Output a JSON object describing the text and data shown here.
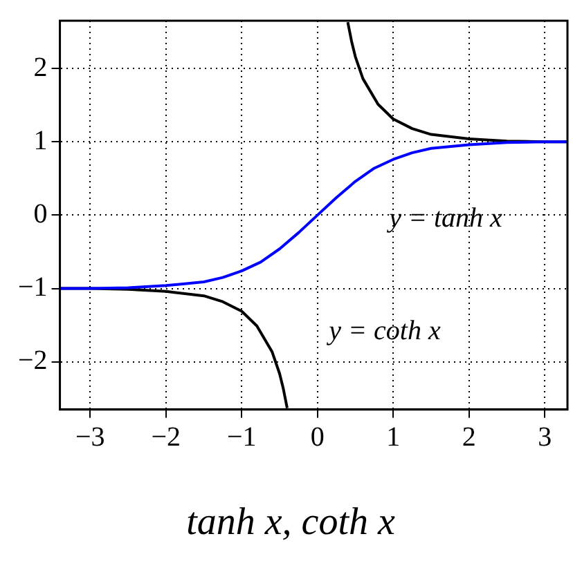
{
  "chart_data": {
    "type": "line",
    "title": "tanh x, coth x",
    "xlim": [
      -3.4,
      3.3
    ],
    "ylim": [
      -2.65,
      2.65
    ],
    "xticks": [
      {
        "value": -3,
        "label": "−3"
      },
      {
        "value": -2,
        "label": "−2"
      },
      {
        "value": -1,
        "label": "−1"
      },
      0,
      1,
      2,
      3
    ],
    "yticks": [
      {
        "value": -2,
        "label": "−2"
      },
      {
        "value": -1,
        "label": "−1"
      },
      0,
      1,
      2
    ],
    "grid": true,
    "legend": false,
    "marker": "none",
    "line_style": "solid",
    "series": [
      {
        "color": "#0000ff",
        "x": [
          -3.4,
          -3,
          -2.5,
          -2,
          -1.5,
          -1.25,
          -1,
          -0.75,
          -0.5,
          -0.25,
          0,
          0.25,
          0.5,
          0.75,
          1,
          1.25,
          1.5,
          2,
          2.5,
          3,
          3.3
        ],
        "values": [
          -1.0,
          -1.0,
          -0.99,
          -0.96,
          -0.91,
          -0.85,
          -0.76,
          -0.64,
          -0.46,
          -0.24,
          0,
          0.24,
          0.46,
          0.64,
          0.76,
          0.85,
          0.91,
          0.96,
          0.99,
          1.0,
          1.0
        ]
      },
      {
        "color": "#000000",
        "x": [
          -3.4,
          -3,
          -2.5,
          -2,
          -1.5,
          -1.25,
          -1,
          -0.8,
          -0.6,
          -0.5,
          -0.45,
          -0.4,
          0,
          0.4,
          0.45,
          0.5,
          0.6,
          0.8,
          1,
          1.25,
          1.5,
          2,
          2.5,
          3,
          3.3
        ],
        "values": [
          -1.0,
          -1.0,
          -1.01,
          -1.04,
          -1.1,
          -1.18,
          -1.31,
          -1.51,
          -1.86,
          -2.16,
          -2.37,
          -2.63,
          null,
          2.63,
          2.37,
          2.16,
          1.86,
          1.51,
          1.31,
          1.18,
          1.1,
          1.04,
          1.01,
          1.0,
          1.0
        ]
      }
    ],
    "annotations": [
      "y = tanh x",
      "y = coth x"
    ]
  }
}
